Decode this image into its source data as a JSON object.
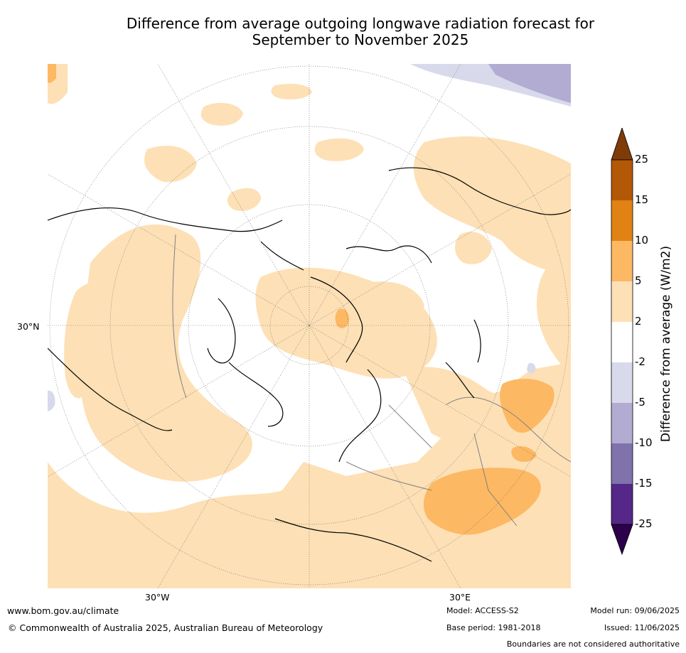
{
  "title": {
    "line1": "Difference from average outgoing longwave radiation forecast for",
    "line2": "September to November 2025"
  },
  "map": {
    "projection": "north polar stereographic",
    "lat_labels": [
      "30°N"
    ],
    "lon_labels": [
      "30°W",
      "30°E"
    ],
    "colors": {
      "ocean_land_neutral": "#ffffff",
      "pos_2_5": "#fde0b5",
      "pos_5_10": "#fdb863",
      "pos_10_15": "#e08214",
      "neg_2_5": "#d8daeb",
      "neg_5_10": "#b2abd2",
      "coast": "#000000",
      "border": "#808080"
    }
  },
  "colorbar": {
    "title": "Difference from average (W/m2)",
    "levels": [
      "25",
      "15",
      "10",
      "5",
      "2",
      "-2",
      "-5",
      "-10",
      "-15",
      "-25"
    ],
    "colors": [
      "#b35806",
      "#e08214",
      "#fdb863",
      "#fee0b6",
      "#ffffff",
      "#d8daeb",
      "#b2abd2",
      "#8073ac",
      "#542788"
    ],
    "top_arrow_color": "#7f3b08",
    "bottom_arrow_color": "#2d004b"
  },
  "footer": {
    "website": "www.bom.gov.au/climate",
    "copyright": "© Commonwealth of Australia 2025, Australian Bureau of Meteorology",
    "model": "Model: ACCESS-S2",
    "base_period": "Base period: 1981-2018",
    "model_run": "Model run: 09/06/2025",
    "issued": "Issued: 11/06/2025",
    "disclaimer": "Boundaries are not considered authoritative"
  }
}
